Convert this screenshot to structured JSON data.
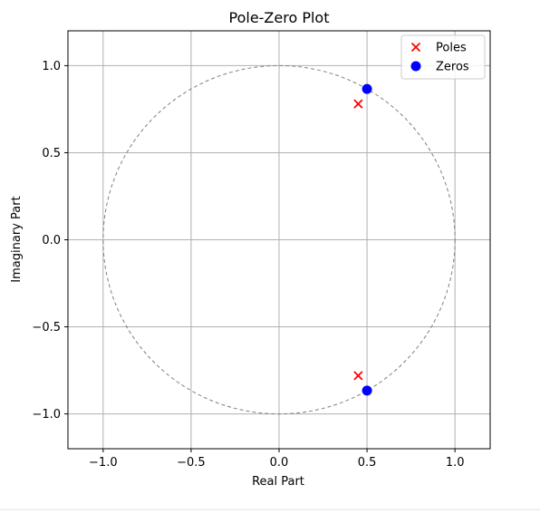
{
  "chart_data": {
    "type": "scatter",
    "title": "Pole-Zero Plot",
    "xlabel": "Real Part",
    "ylabel": "Imaginary Part",
    "xlim": [
      -1.2,
      1.2
    ],
    "ylim": [
      -1.2,
      1.2
    ],
    "xticks": [
      -1.0,
      -0.5,
      0.0,
      0.5,
      1.0
    ],
    "yticks": [
      -1.0,
      -0.5,
      0.0,
      0.5,
      1.0
    ],
    "xtick_labels": [
      "−1.0",
      "−0.5",
      "0.0",
      "0.5",
      "1.0"
    ],
    "ytick_labels": [
      "−1.0",
      "−0.5",
      "0.0",
      "0.5",
      "1.0"
    ],
    "grid": true,
    "unit_circle": {
      "radius": 1.0,
      "style": "dashed",
      "color": "#808080"
    },
    "legend": {
      "position": "top-right"
    },
    "series": [
      {
        "name": "Poles",
        "marker": "x",
        "color": "#ff0000",
        "points": [
          {
            "x": 0.45,
            "y": 0.78
          },
          {
            "x": 0.45,
            "y": -0.78
          }
        ]
      },
      {
        "name": "Zeros",
        "marker": "circle",
        "color": "#0000ff",
        "points": [
          {
            "x": 0.5,
            "y": 0.866
          },
          {
            "x": 0.5,
            "y": -0.866
          }
        ]
      }
    ]
  }
}
